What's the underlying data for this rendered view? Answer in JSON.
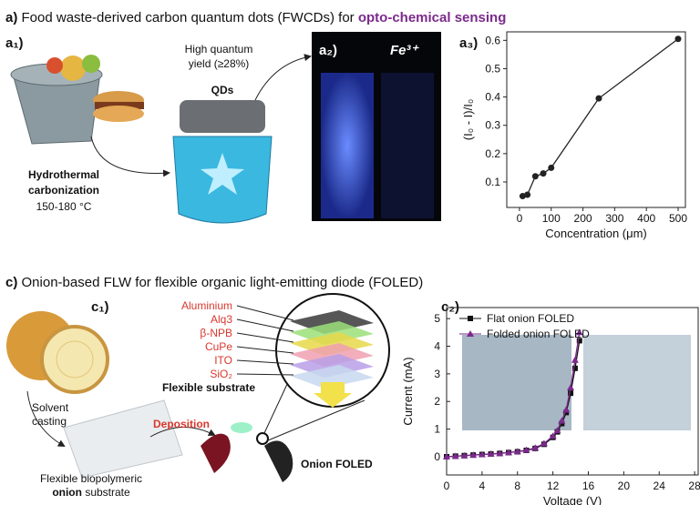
{
  "panel_a": {
    "label": "a)",
    "title": "Food waste-derived carbon quantum dots (FWCDs) for",
    "title_highlight": "opto-chemical sensing",
    "a1": "a₁)",
    "yield_line1": "High quantum",
    "yield_line2": "yield (≥28%)",
    "qds": "QDs",
    "hydro_line1": "Hydrothermal",
    "hydro_line2": "carbonization",
    "temperature": "150-180 °C",
    "a2": "a₂)",
    "fe": "Fe³⁺",
    "a3": "a₃)"
  },
  "panel_c": {
    "label": "c)",
    "title": "Onion-based FLW for flexible organic light-emitting diode (FOLED)",
    "c1": "c₁)",
    "layers": [
      "Aluminium",
      "Alq3",
      "β-NPB",
      "CuPe",
      "ITO",
      "SiO₂"
    ],
    "substrate": "Flexible substrate",
    "solvent_line1": "Solvent",
    "solvent_line2": "casting",
    "deposition": "Deposition",
    "onion_foled": "Onion FOLED",
    "bio_line1": "Flexible biopolymeric",
    "bio_line2_bold": "onion",
    "bio_line2_rest": "substrate",
    "c2": "c₂)"
  },
  "chart_data": [
    {
      "type": "line",
      "xlabel": "Concentration (μm)",
      "ylabel": "(I₀ - I)/I₀",
      "color": "#222222",
      "x": [
        10,
        25,
        50,
        75,
        100,
        250,
        500
      ],
      "values": [
        0.05,
        0.055,
        0.12,
        0.13,
        0.15,
        0.395,
        0.605
      ],
      "xlim": [
        -40,
        523
      ],
      "xticks": [
        0,
        100,
        200,
        300,
        400,
        500
      ],
      "ylim": [
        0.01,
        0.63
      ],
      "yticks": [
        0.1,
        0.2,
        0.3,
        0.4,
        0.5,
        0.6
      ]
    },
    {
      "type": "line",
      "xlabel": "Voltage (V)",
      "ylabel": "Current (mA)",
      "x": [
        0,
        1,
        2,
        3,
        4,
        5,
        6,
        7,
        8,
        9,
        10,
        11,
        12,
        12.5,
        13,
        13.5,
        14,
        14.5,
        15
      ],
      "series": [
        {
          "name": "Flat onion FOLED",
          "color": "#111111",
          "marker": "square",
          "values": [
            0,
            0.02,
            0.04,
            0.06,
            0.08,
            0.1,
            0.12,
            0.15,
            0.18,
            0.23,
            0.3,
            0.45,
            0.7,
            0.9,
            1.2,
            1.6,
            2.3,
            3.2,
            4.2
          ]
        },
        {
          "name": "Folded onion FOLED",
          "color": "#7b2a8c",
          "marker": "triangle",
          "values": [
            0,
            0.02,
            0.04,
            0.06,
            0.08,
            0.1,
            0.12,
            0.15,
            0.19,
            0.24,
            0.32,
            0.48,
            0.75,
            0.95,
            1.3,
            1.7,
            2.5,
            3.5,
            4.5
          ]
        }
      ],
      "xlim": [
        0,
        28.4
      ],
      "xticks": [
        0,
        4,
        8,
        12,
        16,
        20,
        24,
        28
      ],
      "ylim": [
        -0.66,
        5.4
      ],
      "yticks": [
        0,
        1,
        2,
        3,
        4,
        5
      ]
    }
  ]
}
